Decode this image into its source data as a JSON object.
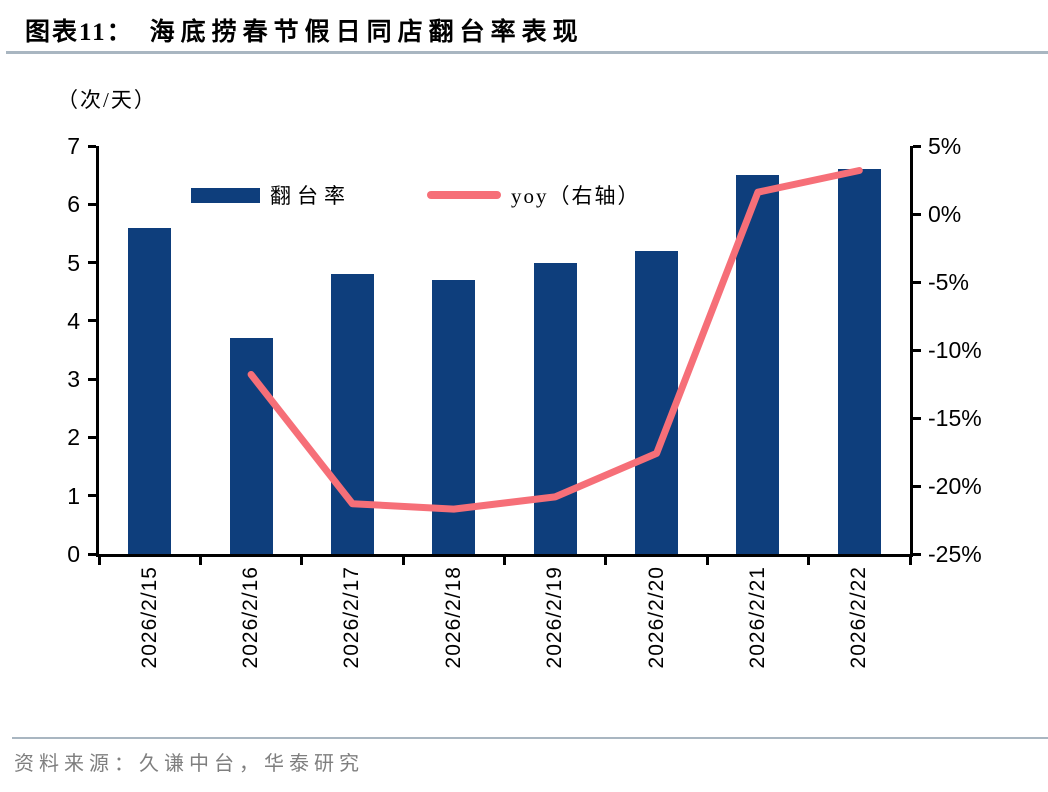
{
  "header": {
    "label": "图表11：",
    "title": "海底捞春节假日同店翻台率表现"
  },
  "chart_data": {
    "type": "bar+line",
    "title": "海底捞春节假日同店翻台率表现",
    "categories": [
      "2026/2/15",
      "2026/2/16",
      "2026/2/17",
      "2026/2/18",
      "2026/2/19",
      "2026/2/20",
      "2026/2/21",
      "2026/2/22"
    ],
    "series": [
      {
        "name": "翻台率",
        "type": "bar",
        "axis": "left",
        "color": "#0e3e7c",
        "values": [
          5.6,
          3.7,
          4.8,
          4.7,
          5.0,
          5.2,
          6.5,
          6.6
        ]
      },
      {
        "name": "yoy（右轴）",
        "type": "line",
        "axis": "right",
        "color": "#f66f78",
        "values": [
          null,
          -11.8,
          -21.3,
          -21.7,
          -20.8,
          -17.6,
          1.6,
          3.2
        ]
      }
    ],
    "left_axis": {
      "unit": "（次/天）",
      "min": 0,
      "max": 7,
      "step": 1,
      "suffix": ""
    },
    "right_axis": {
      "min": -25,
      "max": 5,
      "step": 5,
      "suffix": "%"
    },
    "legend_position": "top-inside",
    "grid": false
  },
  "footer": {
    "source": "资料来源：久谦中台，华泰研究"
  },
  "colors": {
    "bar": "#0e3e7c",
    "line": "#f66f78",
    "rule": "#a9b6c1",
    "source_text": "#7f7f7f",
    "axis": "#000000"
  }
}
